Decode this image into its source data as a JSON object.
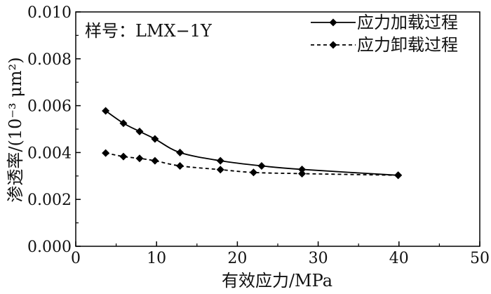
{
  "chart_data": {
    "type": "line",
    "sample_label": "样号：LMX−1Y",
    "xlabel": "有效应力/MPa",
    "ylabel": "渗透率/(10⁻³ μm²)",
    "xlim": [
      0,
      50
    ],
    "ylim": [
      0,
      0.01
    ],
    "x_ticks": [
      0,
      10,
      20,
      30,
      40,
      50
    ],
    "y_ticks": [
      0.0,
      0.002,
      0.004,
      0.006,
      0.008,
      0.01
    ],
    "x_tick_labels": [
      "0",
      "10",
      "20",
      "30",
      "40",
      "50"
    ],
    "y_tick_labels": [
      "0.000",
      "0.002",
      "0.004",
      "0.006",
      "0.008",
      "0.010"
    ],
    "grid": false,
    "legend_position": "top-right",
    "series": [
      {
        "name": "应力加载过程",
        "line_style": "solid",
        "marker": "diamond",
        "color": "#000000",
        "x": [
          3.7,
          5.9,
          7.9,
          9.8,
          12.9,
          17.9,
          23.0,
          28.0,
          39.9
        ],
        "y": [
          0.00578,
          0.00525,
          0.0049,
          0.00458,
          0.004,
          0.00365,
          0.00343,
          0.00328,
          0.00303
        ]
      },
      {
        "name": "应力卸载过程",
        "line_style": "dashed",
        "marker": "diamond",
        "color": "#000000",
        "x": [
          3.7,
          5.9,
          7.9,
          9.8,
          12.9,
          17.9,
          22.0,
          28.0,
          39.9
        ],
        "y": [
          0.00398,
          0.00383,
          0.00375,
          0.00365,
          0.00343,
          0.00327,
          0.00315,
          0.0031,
          0.00303
        ]
      }
    ]
  }
}
